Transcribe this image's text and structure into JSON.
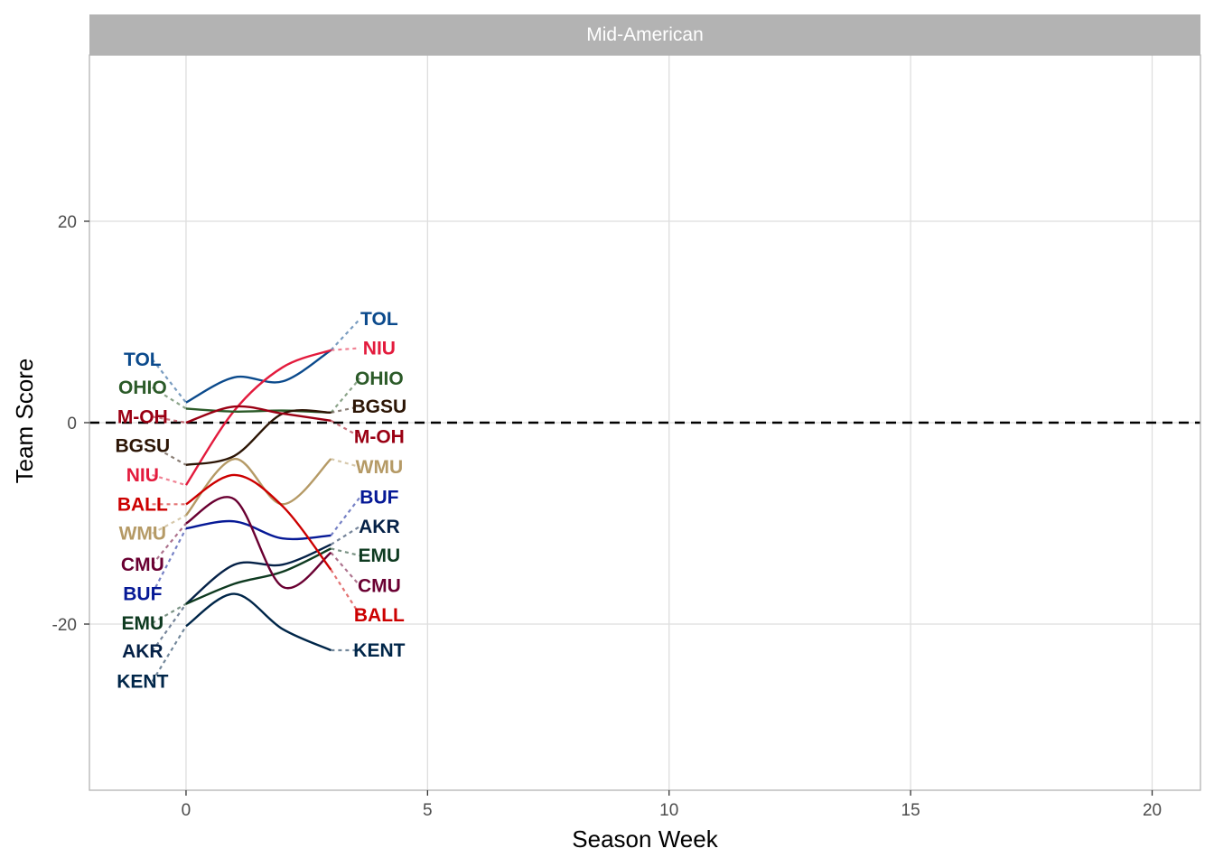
{
  "chart_data": {
    "type": "line",
    "facet_title": "Mid-American",
    "xlabel": "Season Week",
    "ylabel": "Team Score",
    "xlim": [
      -2,
      21
    ],
    "ylim": [
      -36.5,
      36.5
    ],
    "x_ticks": [
      0,
      5,
      10,
      15,
      20
    ],
    "y_ticks": [
      -20,
      0,
      20
    ],
    "reference_line": {
      "y": 0,
      "style": "dashed"
    },
    "grid": true,
    "series": [
      {
        "name": "TOL",
        "color": "#0b4a8c",
        "x": [
          0,
          1,
          2,
          3
        ],
        "y": [
          2.0,
          4.5,
          4.1,
          7.2
        ],
        "start_label_y": 6.3,
        "end_label_y": 10.3
      },
      {
        "name": "NIU",
        "color": "#e31b3d",
        "x": [
          0,
          1,
          2,
          3
        ],
        "y": [
          -6.2,
          1.2,
          5.5,
          7.2
        ],
        "start_label_y": -5.2,
        "end_label_y": 7.4
      },
      {
        "name": "OHIO",
        "color": "#2b5a28",
        "x": [
          0,
          1,
          2,
          3
        ],
        "y": [
          1.4,
          1.1,
          1.2,
          1.0
        ],
        "start_label_y": 3.5,
        "end_label_y": 4.4
      },
      {
        "name": "BGSU",
        "color": "#2c1505",
        "x": [
          0,
          1,
          2,
          3
        ],
        "y": [
          -4.2,
          -3.3,
          0.9,
          1.0
        ],
        "start_label_y": -2.3,
        "end_label_y": 1.6
      },
      {
        "name": "M-OH",
        "color": "#9a0013",
        "x": [
          0,
          1,
          2,
          3
        ],
        "y": [
          0.0,
          1.6,
          0.9,
          0.2
        ],
        "start_label_y": 0.6,
        "end_label_y": -1.4
      },
      {
        "name": "WMU",
        "color": "#b59a66",
        "x": [
          0,
          1,
          2,
          3
        ],
        "y": [
          -9.2,
          -3.6,
          -8.1,
          -3.6
        ],
        "start_label_y": -11.0,
        "end_label_y": -4.4
      },
      {
        "name": "BUF",
        "color": "#061996",
        "x": [
          0,
          1,
          2,
          3
        ],
        "y": [
          -10.5,
          -9.8,
          -11.5,
          -11.2
        ],
        "start_label_y": -17.0,
        "end_label_y": -7.4
      },
      {
        "name": "AKR",
        "color": "#052147",
        "x": [
          0,
          1,
          2,
          3
        ],
        "y": [
          -18.0,
          -14.1,
          -14.1,
          -12.1
        ],
        "start_label_y": -22.7,
        "end_label_y": -10.3
      },
      {
        "name": "EMU",
        "color": "#0e3a20",
        "x": [
          0,
          1,
          2,
          3
        ],
        "y": [
          -18.0,
          -16.0,
          -14.8,
          -12.5
        ],
        "start_label_y": -19.9,
        "end_label_y": -13.2
      },
      {
        "name": "CMU",
        "color": "#6a0032",
        "x": [
          0,
          1,
          2,
          3
        ],
        "y": [
          -10.0,
          -7.6,
          -16.3,
          -12.9
        ],
        "start_label_y": -14.1,
        "end_label_y": -16.2
      },
      {
        "name": "BALL",
        "color": "#cc0000",
        "x": [
          0,
          1,
          2,
          3
        ],
        "y": [
          -8.1,
          -5.2,
          -8.3,
          -14.6
        ],
        "start_label_y": -8.1,
        "end_label_y": -19.1
      },
      {
        "name": "KENT",
        "color": "#002649",
        "x": [
          0,
          1,
          2,
          3
        ],
        "y": [
          -20.2,
          -17.0,
          -20.5,
          -22.6
        ],
        "start_label_y": -25.7,
        "end_label_y": -22.6
      }
    ]
  }
}
